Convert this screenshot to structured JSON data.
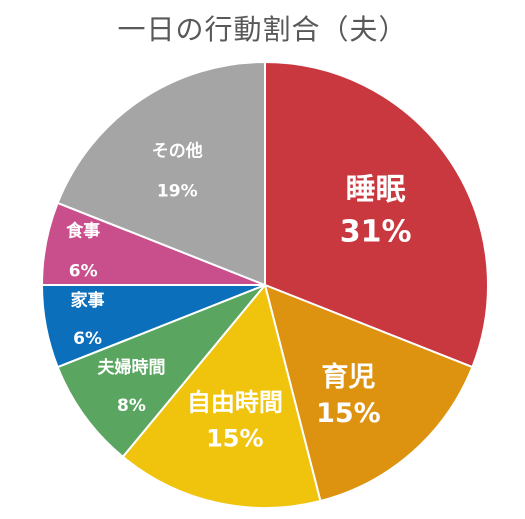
{
  "chart_data": {
    "type": "pie",
    "title": "一日の行動割合（夫）",
    "unit": "%",
    "slices": [
      {
        "label": "睡眠",
        "value": 31,
        "value_label": "31%",
        "color": "#c9373f",
        "emphasis": true
      },
      {
        "label": "育児",
        "value": 15,
        "value_label": "15%",
        "color": "#dd9210",
        "emphasis": true
      },
      {
        "label": "自由時間",
        "value": 15,
        "value_label": "15%",
        "color": "#f0c30d",
        "emphasis": true
      },
      {
        "label": "夫婦時間",
        "value": 8,
        "value_label": "8%",
        "color": "#5aa661",
        "emphasis": false
      },
      {
        "label": "家事",
        "value": 6,
        "value_label": "6%",
        "color": "#0b6fbb",
        "emphasis": false
      },
      {
        "label": "食事",
        "value": 6,
        "value_label": "6%",
        "color": "#c94f8c",
        "emphasis": false
      },
      {
        "label": "その他",
        "value": 19,
        "value_label": "19%",
        "color": "#a5a5a5",
        "emphasis": false
      }
    ],
    "start": "12 o'clock",
    "direction": "clockwise",
    "slice_border_color": "#ffffff"
  }
}
